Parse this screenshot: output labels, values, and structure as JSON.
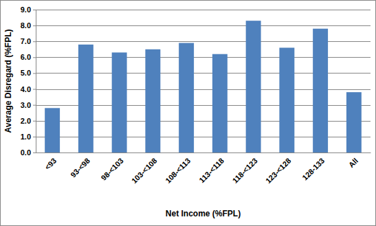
{
  "chart_data": {
    "type": "bar",
    "x_label": "Net Income (%FPL)",
    "y_label": "Average Disregard (%FPL)",
    "categories": [
      "<93",
      "93-<98",
      "98-<103",
      "103-<108",
      "108-<113",
      "113-<118",
      "118-<123",
      "123-<128",
      "128-133",
      "All"
    ],
    "values": [
      2.8,
      6.8,
      6.3,
      6.5,
      6.9,
      6.2,
      8.3,
      6.6,
      7.8,
      3.8
    ],
    "color": "#4f81bd",
    "ylim": [
      0,
      9
    ],
    "yticks": [
      {
        "value": 0,
        "label": "0.0"
      },
      {
        "value": 1,
        "label": "1.0"
      },
      {
        "value": 2,
        "label": "2.0"
      },
      {
        "value": 3,
        "label": "3.0"
      },
      {
        "value": 4,
        "label": "4.0"
      },
      {
        "value": 5,
        "label": "5.0"
      },
      {
        "value": 6,
        "label": "6.0"
      },
      {
        "value": 7,
        "label": "7.0"
      },
      {
        "value": 8,
        "label": "8.0"
      },
      {
        "value": 9,
        "label": "9.0"
      }
    ],
    "grid": true
  }
}
